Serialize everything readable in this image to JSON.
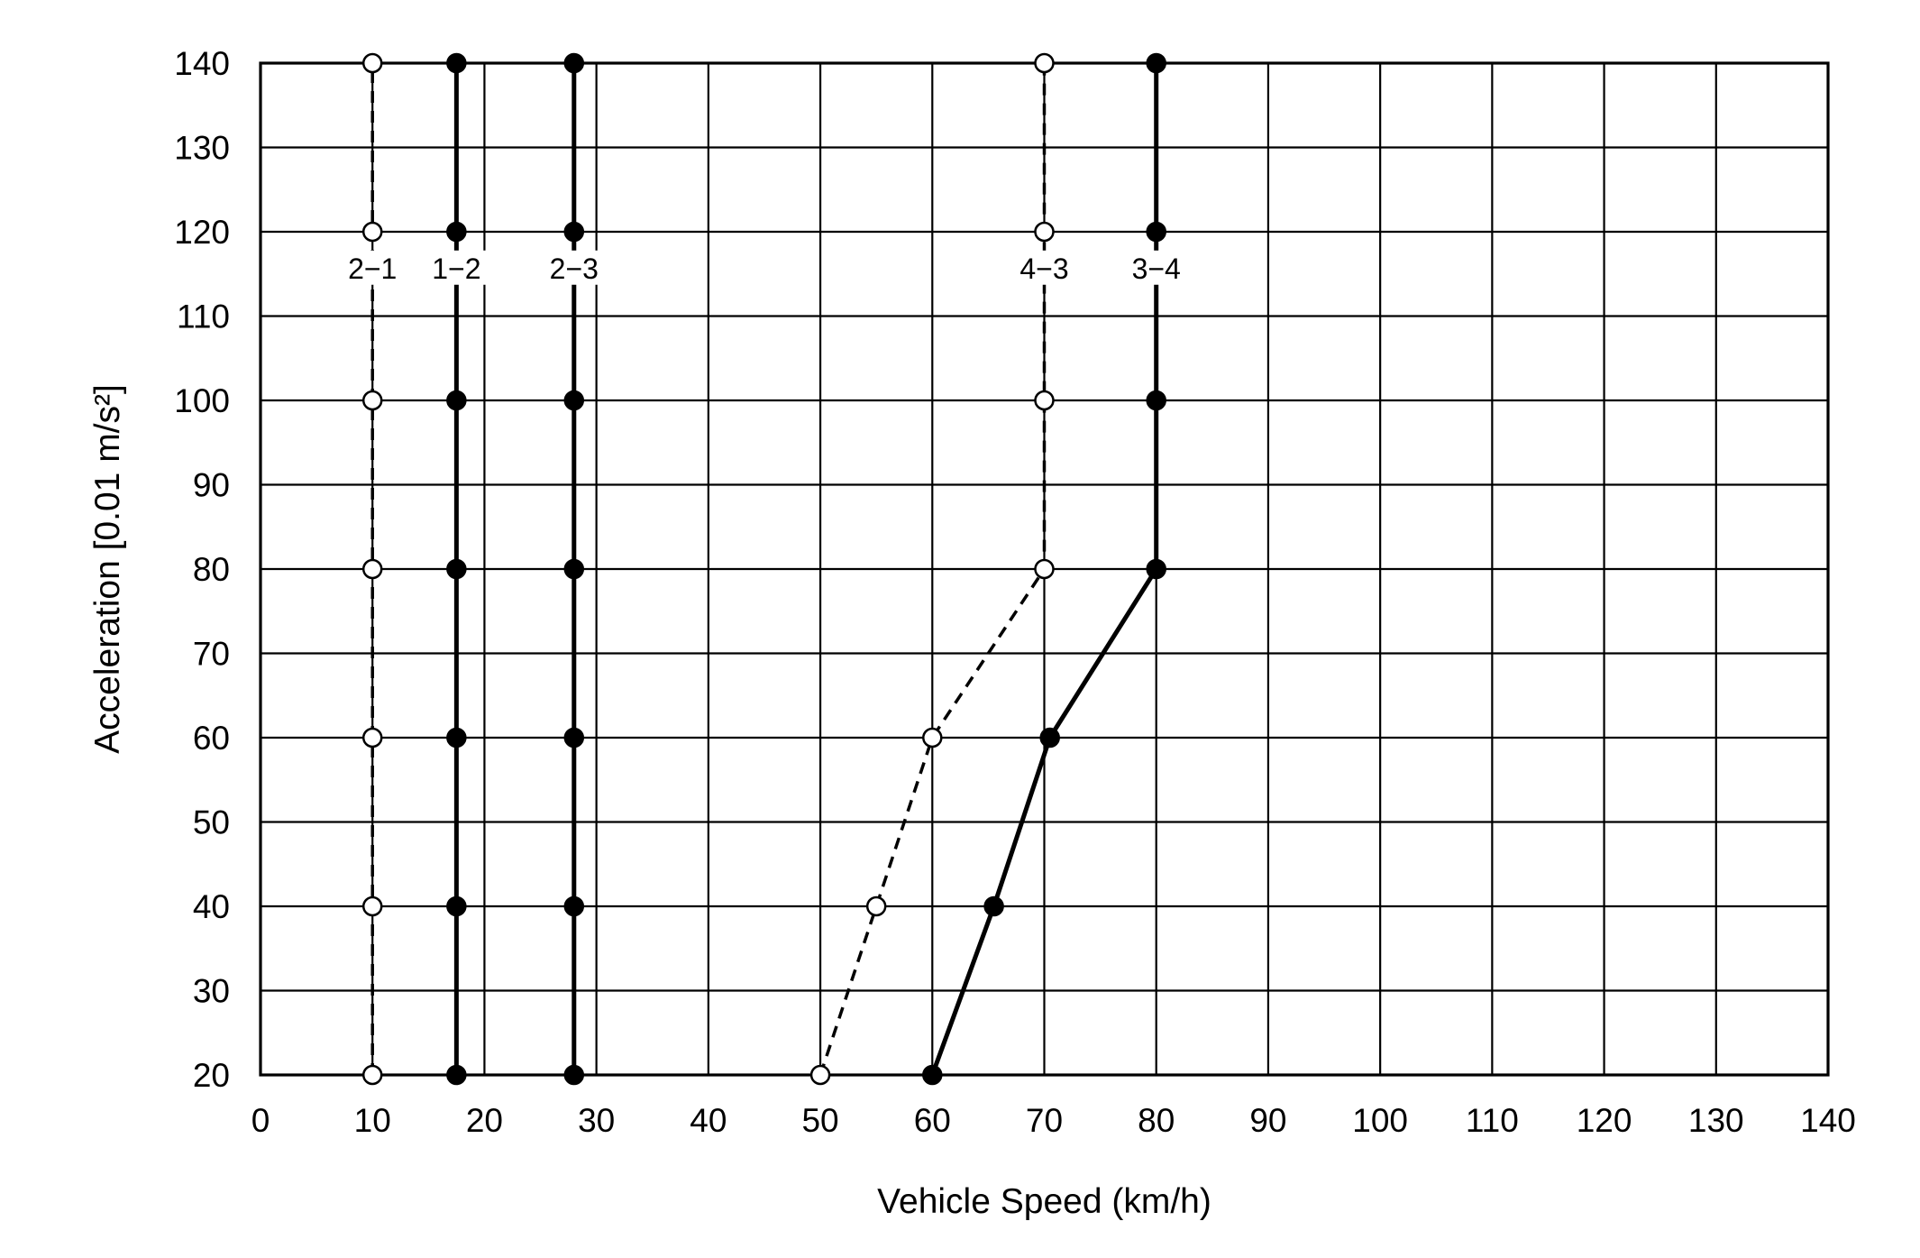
{
  "chart_data": {
    "type": "line",
    "title": "",
    "xlabel": "Vehicle Speed (km/h)",
    "ylabel": "Acceleration [0.01 m/s²]",
    "xlim": [
      0,
      140
    ],
    "ylim": [
      20,
      140
    ],
    "x_ticks": [
      0,
      10,
      20,
      30,
      40,
      50,
      60,
      70,
      80,
      90,
      100,
      110,
      120,
      130,
      140
    ],
    "y_ticks": [
      20,
      30,
      40,
      50,
      60,
      70,
      80,
      90,
      100,
      110,
      120,
      130,
      140
    ],
    "grid": true,
    "legend": "none",
    "colors": {
      "line": "#000000",
      "open_marker_fill": "#ffffff",
      "background": "#ffffff"
    },
    "series": [
      {
        "name": "2−1",
        "style": "dashed",
        "marker": "open-circle",
        "points": [
          [
            10,
            20
          ],
          [
            10,
            40
          ],
          [
            10,
            60
          ],
          [
            10,
            80
          ],
          [
            10,
            100
          ],
          [
            10,
            120
          ],
          [
            10,
            140
          ]
        ]
      },
      {
        "name": "1−2",
        "style": "solid",
        "marker": "filled-circle",
        "points": [
          [
            17.5,
            20
          ],
          [
            17.5,
            40
          ],
          [
            17.5,
            60
          ],
          [
            17.5,
            80
          ],
          [
            17.5,
            100
          ],
          [
            17.5,
            120
          ],
          [
            17.5,
            140
          ]
        ]
      },
      {
        "name": "2−3",
        "style": "solid",
        "marker": "filled-circle",
        "points": [
          [
            28,
            20
          ],
          [
            28,
            40
          ],
          [
            28,
            60
          ],
          [
            28,
            80
          ],
          [
            28,
            100
          ],
          [
            28,
            120
          ],
          [
            28,
            140
          ]
        ]
      },
      {
        "name": "4−3",
        "style": "dashed",
        "marker": "open-circle",
        "points": [
          [
            50,
            20
          ],
          [
            55,
            40
          ],
          [
            60,
            60
          ],
          [
            70,
            80
          ],
          [
            70,
            100
          ],
          [
            70,
            120
          ],
          [
            70,
            140
          ]
        ]
      },
      {
        "name": "3−4",
        "style": "solid",
        "marker": "filled-circle",
        "points": [
          [
            60,
            20
          ],
          [
            65.5,
            40
          ],
          [
            70.5,
            60
          ],
          [
            80,
            80
          ],
          [
            80,
            100
          ],
          [
            80,
            120
          ],
          [
            80,
            140
          ]
        ]
      }
    ]
  }
}
